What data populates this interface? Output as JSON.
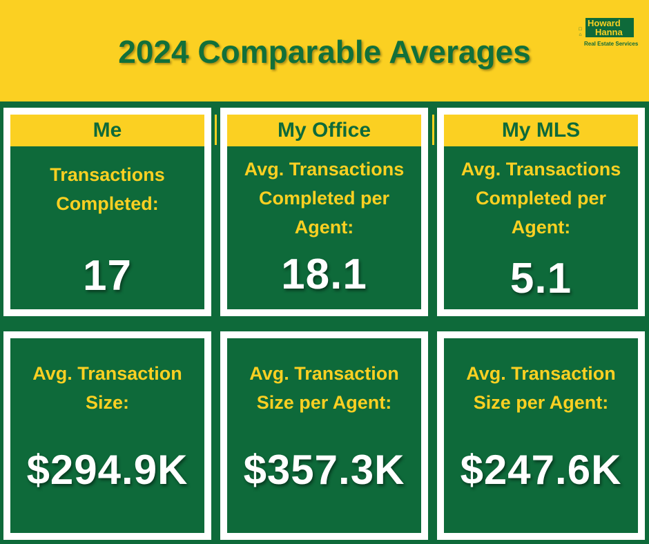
{
  "title": "2024 Comparable Averages",
  "logo": {
    "word1": "Howard",
    "word2": "Hanna",
    "tagline": "Real Estate Services"
  },
  "colors": {
    "brand_green": "#0e6a3a",
    "brand_yellow": "#fbd022",
    "value_white": "#ffffff"
  },
  "top_cards": [
    {
      "header": "Me",
      "label_lines": [
        "Transactions",
        "Completed:"
      ],
      "value": "17"
    },
    {
      "header": "My Office",
      "label_lines": [
        "Avg. Transactions",
        "Completed per",
        "Agent:"
      ],
      "value": "18.1"
    },
    {
      "header": "My MLS",
      "label_lines": [
        "Avg. Transactions",
        "Completed per",
        "Agent:"
      ],
      "value": "5.1"
    }
  ],
  "bottom_cards": [
    {
      "label_lines": [
        "Avg. Transaction",
        "Size:"
      ],
      "value": "$294.9K"
    },
    {
      "label_lines": [
        "Avg. Transaction",
        "Size per Agent:"
      ],
      "value": "$357.3K"
    },
    {
      "label_lines": [
        "Avg. Transaction",
        "Size per Agent:"
      ],
      "value": "$247.6K"
    }
  ]
}
